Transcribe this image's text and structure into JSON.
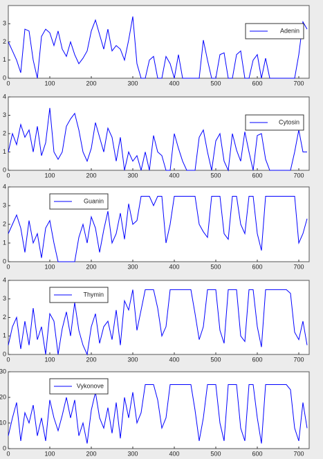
{
  "chart_data": [
    {
      "type": "line",
      "xlim": [
        0,
        725
      ],
      "xticks": [
        0,
        100,
        200,
        300,
        400,
        500,
        600,
        700
      ],
      "ylim": [
        0,
        4
      ],
      "yticks": [
        0,
        1,
        2,
        3
      ],
      "legend": "upper right",
      "x": [
        0,
        10,
        20,
        30,
        40,
        50,
        60,
        70,
        80,
        90,
        100,
        110,
        120,
        130,
        140,
        150,
        160,
        170,
        180,
        190,
        200,
        210,
        220,
        230,
        240,
        250,
        260,
        270,
        280,
        290,
        300,
        310,
        320,
        330,
        340,
        350,
        360,
        370,
        380,
        390,
        400,
        410,
        420,
        430,
        440,
        450,
        460,
        470,
        480,
        490,
        500,
        510,
        520,
        530,
        540,
        550,
        560,
        570,
        580,
        590,
        600,
        610,
        620,
        630,
        640,
        650,
        660,
        670,
        680,
        690,
        700,
        710,
        720
      ],
      "series": [
        {
          "name": "Adenin",
          "color": "#0000ff",
          "values": [
            2,
            1.5,
            1,
            0.3,
            2.7,
            2.6,
            1,
            0,
            2.3,
            2.7,
            2.5,
            1.8,
            2.6,
            1.6,
            1.2,
            2,
            1.3,
            0.8,
            1.1,
            1.5,
            2.6,
            3.2,
            2.4,
            1.6,
            2.7,
            1.5,
            1.8,
            1.6,
            1,
            2.1,
            3.4,
            0.8,
            0,
            0,
            1,
            1.2,
            0,
            0,
            1.2,
            0.8,
            0,
            1.3,
            0,
            0,
            0,
            0,
            0,
            2.1,
            1,
            0,
            0,
            1.3,
            1.4,
            0,
            0,
            1.3,
            1.5,
            0,
            0,
            1,
            1.3,
            0,
            1.1,
            0,
            0,
            0,
            0,
            0,
            0,
            0,
            1.3,
            3.1,
            2.7
          ]
        }
      ]
    },
    {
      "type": "line",
      "xlim": [
        0,
        725
      ],
      "xticks": [
        0,
        100,
        200,
        300,
        400,
        500,
        600,
        700
      ],
      "ylim": [
        0,
        4
      ],
      "yticks": [
        0,
        1,
        2,
        3,
        4
      ],
      "legend": "upper right",
      "x": [
        0,
        10,
        20,
        30,
        40,
        50,
        60,
        70,
        80,
        90,
        100,
        110,
        120,
        130,
        140,
        150,
        160,
        170,
        180,
        190,
        200,
        210,
        220,
        230,
        240,
        250,
        260,
        270,
        280,
        290,
        300,
        310,
        320,
        330,
        340,
        350,
        360,
        370,
        380,
        390,
        400,
        410,
        420,
        430,
        440,
        450,
        460,
        470,
        480,
        490,
        500,
        510,
        520,
        530,
        540,
        550,
        560,
        570,
        580,
        590,
        600,
        610,
        620,
        630,
        640,
        650,
        660,
        670,
        680,
        690,
        700,
        710,
        720
      ],
      "series": [
        {
          "name": "Cytosin",
          "color": "#0000ff",
          "values": [
            1,
            2,
            1.4,
            2.5,
            1.8,
            2.2,
            1,
            2.4,
            0.8,
            1.5,
            3.4,
            1,
            0.6,
            1,
            2.4,
            2.8,
            3.1,
            2.2,
            1,
            0.5,
            1.2,
            2.6,
            1.8,
            1,
            2.3,
            1.8,
            0.5,
            1.8,
            0,
            1,
            0.5,
            0.8,
            0,
            1,
            0,
            1.9,
            1,
            0.8,
            0,
            0,
            2,
            1.2,
            0.5,
            0,
            0,
            0,
            1.8,
            2.2,
            1,
            0,
            1.6,
            2,
            0.5,
            0,
            2,
            1.1,
            0.5,
            2.1,
            1,
            0,
            1.9,
            2,
            0.6,
            0,
            0,
            0,
            0,
            0,
            0,
            1,
            2.2,
            1,
            1
          ]
        }
      ]
    },
    {
      "type": "line",
      "xlim": [
        0,
        725
      ],
      "xticks": [
        0,
        100,
        200,
        300,
        400,
        500,
        600,
        700
      ],
      "ylim": [
        0,
        4
      ],
      "yticks": [
        0,
        1,
        2,
        3,
        4
      ],
      "legend": "upper left",
      "x": [
        0,
        10,
        20,
        30,
        40,
        50,
        60,
        70,
        80,
        90,
        100,
        110,
        120,
        130,
        140,
        150,
        160,
        170,
        180,
        190,
        200,
        210,
        220,
        230,
        240,
        250,
        260,
        270,
        280,
        290,
        300,
        310,
        320,
        330,
        340,
        350,
        360,
        370,
        380,
        390,
        400,
        410,
        420,
        430,
        440,
        450,
        460,
        470,
        480,
        490,
        500,
        510,
        520,
        530,
        540,
        550,
        560,
        570,
        580,
        590,
        600,
        610,
        620,
        630,
        640,
        650,
        660,
        670,
        680,
        690,
        700,
        710,
        720
      ],
      "series": [
        {
          "name": "Guanin",
          "color": "#0000ff",
          "values": [
            1.5,
            2,
            2.5,
            1.8,
            0.5,
            2.2,
            1,
            1.5,
            0.2,
            1.8,
            2.2,
            1,
            0,
            0,
            0,
            0,
            0,
            1.3,
            2,
            1,
            2.4,
            1.8,
            0.5,
            1.7,
            2.7,
            1,
            1.5,
            2.6,
            1.2,
            3.1,
            2,
            2.2,
            3.5,
            3.5,
            3.5,
            3,
            3.5,
            3.5,
            1,
            2,
            3.5,
            3.5,
            3.5,
            3.5,
            3.5,
            3.5,
            2,
            1.6,
            1.3,
            3.5,
            3.5,
            3.5,
            1.5,
            1.2,
            3.5,
            3.5,
            2,
            1.5,
            3.5,
            3.5,
            1.5,
            0.6,
            3.5,
            3.5,
            3.5,
            3.5,
            3.5,
            3.5,
            3.5,
            3.5,
            1,
            1.5,
            2.3
          ]
        }
      ]
    },
    {
      "type": "line",
      "xlim": [
        0,
        725
      ],
      "xticks": [
        0,
        100,
        200,
        300,
        400,
        500,
        600,
        700
      ],
      "ylim": [
        0,
        4
      ],
      "yticks": [
        0,
        1,
        2,
        3,
        4
      ],
      "legend": "upper left",
      "x": [
        0,
        10,
        20,
        30,
        40,
        50,
        60,
        70,
        80,
        90,
        100,
        110,
        120,
        130,
        140,
        150,
        160,
        170,
        180,
        190,
        200,
        210,
        220,
        230,
        240,
        250,
        260,
        270,
        280,
        290,
        300,
        310,
        320,
        330,
        340,
        350,
        360,
        370,
        380,
        390,
        400,
        410,
        420,
        430,
        440,
        450,
        460,
        470,
        480,
        490,
        500,
        510,
        520,
        530,
        540,
        550,
        560,
        570,
        580,
        590,
        600,
        610,
        620,
        630,
        640,
        650,
        660,
        670,
        680,
        690,
        700,
        710,
        720
      ],
      "series": [
        {
          "name": "Thymin",
          "color": "#0000ff",
          "values": [
            0.5,
            1.5,
            2,
            0.3,
            1.8,
            0.5,
            2.5,
            0.8,
            1.5,
            0,
            2.2,
            1.8,
            0,
            1.4,
            2.3,
            1,
            2.8,
            1.3,
            0.5,
            0,
            1.5,
            2.2,
            0.6,
            1.5,
            1.8,
            0.8,
            2.4,
            0.5,
            2.9,
            2.4,
            3.5,
            1.3,
            2.4,
            3.5,
            3.5,
            3.5,
            2.5,
            1,
            1.5,
            3.5,
            3.5,
            3.5,
            3.5,
            3.5,
            3.5,
            2.2,
            0.8,
            1.5,
            3.5,
            3.5,
            3.5,
            1.3,
            0.6,
            3.5,
            3.5,
            3.5,
            1,
            0.7,
            3.5,
            3.5,
            1.5,
            0.4,
            3.5,
            3.5,
            3.5,
            3.5,
            3.5,
            3.5,
            3.3,
            1.2,
            0.8,
            1.8,
            0.5
          ]
        }
      ]
    },
    {
      "type": "line",
      "xlim": [
        0,
        725
      ],
      "xticks": [
        0,
        100,
        200,
        300,
        400,
        500,
        600,
        700
      ],
      "ylim": [
        0,
        30
      ],
      "yticks": [
        0,
        10,
        20,
        30
      ],
      "legend": "upper left",
      "x": [
        0,
        10,
        20,
        30,
        40,
        50,
        60,
        70,
        80,
        90,
        100,
        110,
        120,
        130,
        140,
        150,
        160,
        170,
        180,
        190,
        200,
        210,
        220,
        230,
        240,
        250,
        260,
        270,
        280,
        290,
        300,
        310,
        320,
        330,
        340,
        350,
        360,
        370,
        380,
        390,
        400,
        410,
        420,
        430,
        440,
        450,
        460,
        470,
        480,
        490,
        500,
        510,
        520,
        530,
        540,
        550,
        560,
        570,
        580,
        590,
        600,
        610,
        620,
        630,
        640,
        650,
        660,
        670,
        680,
        690,
        700,
        710,
        720
      ],
      "series": [
        {
          "name": "Vykonove",
          "color": "#0000ff",
          "values": [
            5,
            12,
            18,
            3,
            14,
            10,
            17,
            5,
            12,
            3,
            19,
            12,
            7,
            13,
            20,
            12,
            19,
            5,
            10,
            2,
            15,
            22,
            12,
            8,
            16,
            6,
            18,
            4,
            20,
            12,
            22,
            10,
            14,
            25,
            25,
            25,
            19,
            8,
            12,
            25,
            25,
            25,
            25,
            25,
            25,
            15,
            3,
            12,
            25,
            25,
            25,
            10,
            3,
            25,
            25,
            25,
            8,
            3,
            25,
            25,
            12,
            2,
            25,
            25,
            25,
            25,
            25,
            25,
            23,
            8,
            3,
            18,
            8
          ]
        }
      ]
    }
  ]
}
